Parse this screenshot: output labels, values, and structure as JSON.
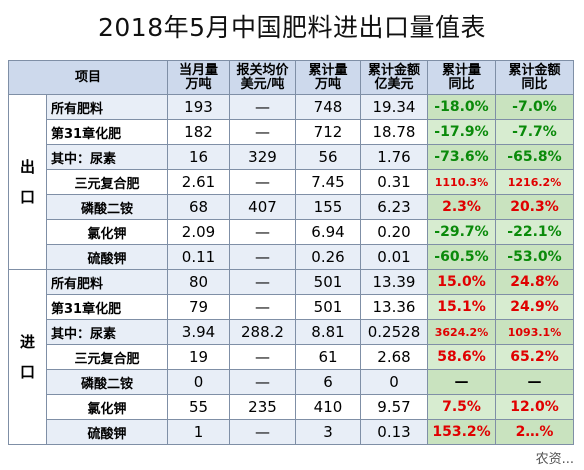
{
  "title": "2018年5月中国肥料进出口量值表",
  "header": {
    "item": "项目",
    "col1": [
      "当月量",
      "万吨"
    ],
    "col2": [
      "报关均价",
      "美元/吨"
    ],
    "col3": [
      "累计量",
      "万吨"
    ],
    "col4": [
      "累计金额",
      "亿美元"
    ],
    "col5": [
      "累计量",
      "同比"
    ],
    "col6": [
      "累计金额",
      "同比"
    ]
  },
  "sections": [
    {
      "label": "出\n口",
      "rows": [
        {
          "name": "所有肥料",
          "monthly": "193",
          "price": "—",
          "cum_qty": "748",
          "cum_amt": "19.34",
          "qty_yoy": "-18.0%",
          "amt_yoy": "-7.0%"
        },
        {
          "name": "第31章化肥",
          "monthly": "182",
          "price": "—",
          "cum_qty": "712",
          "cum_amt": "18.78",
          "qty_yoy": "-17.9%",
          "amt_yoy": "-7.7%"
        },
        {
          "name": "其中：尿素",
          "monthly": "16",
          "price": "329",
          "cum_qty": "56",
          "cum_amt": "1.76",
          "qty_yoy": "-73.6%",
          "amt_yoy": "-65.8%"
        },
        {
          "name": "三元复合肥",
          "monthly": "2.61",
          "price": "—",
          "cum_qty": "7.45",
          "cum_amt": "0.31",
          "qty_yoy": "1110.3%",
          "amt_yoy": "1216.2%"
        },
        {
          "name": "磷酸二铵",
          "monthly": "68",
          "price": "407",
          "cum_qty": "155",
          "cum_amt": "6.23",
          "qty_yoy": "2.3%",
          "amt_yoy": "20.3%"
        },
        {
          "name": "氯化钾",
          "monthly": "2.09",
          "price": "—",
          "cum_qty": "6.94",
          "cum_amt": "0.20",
          "qty_yoy": "-29.7%",
          "amt_yoy": "-22.1%"
        },
        {
          "name": "硫酸钾",
          "monthly": "0.11",
          "price": "—",
          "cum_qty": "0.26",
          "cum_amt": "0.01",
          "qty_yoy": "-60.5%",
          "amt_yoy": "-53.0%"
        }
      ]
    },
    {
      "label": "进\n口",
      "rows": [
        {
          "name": "所有肥料",
          "monthly": "80",
          "price": "—",
          "cum_qty": "501",
          "cum_amt": "13.39",
          "qty_yoy": "15.0%",
          "amt_yoy": "24.8%"
        },
        {
          "name": "第31章化肥",
          "monthly": "79",
          "price": "—",
          "cum_qty": "501",
          "cum_amt": "13.36",
          "qty_yoy": "15.1%",
          "amt_yoy": "24.9%"
        },
        {
          "name": "其中：尿素",
          "monthly": "3.94",
          "price": "288.2",
          "cum_qty": "8.81",
          "cum_amt": "0.2528",
          "qty_yoy": "3624.2%",
          "amt_yoy": "1093.1%"
        },
        {
          "name": "三元复合肥",
          "monthly": "19",
          "price": "—",
          "cum_qty": "61",
          "cum_amt": "2.68",
          "qty_yoy": "58.6%",
          "amt_yoy": "65.2%"
        },
        {
          "name": "磷酸二铵",
          "monthly": "0",
          "price": "—",
          "cum_qty": "6",
          "cum_amt": "0",
          "qty_yoy": "—",
          "amt_yoy": "—"
        },
        {
          "name": "氯化钾",
          "monthly": "55",
          "price": "235",
          "cum_qty": "410",
          "cum_amt": "9.57",
          "qty_yoy": "7.5%",
          "amt_yoy": "12.0%"
        },
        {
          "name": "硫酸钾",
          "monthly": "1",
          "price": "—",
          "cum_qty": "3",
          "cum_amt": "0.13",
          "qty_yoy": "153.2%",
          "amt_yoy": "2…%"
        }
      ]
    }
  ],
  "watermark": "农资..."
}
